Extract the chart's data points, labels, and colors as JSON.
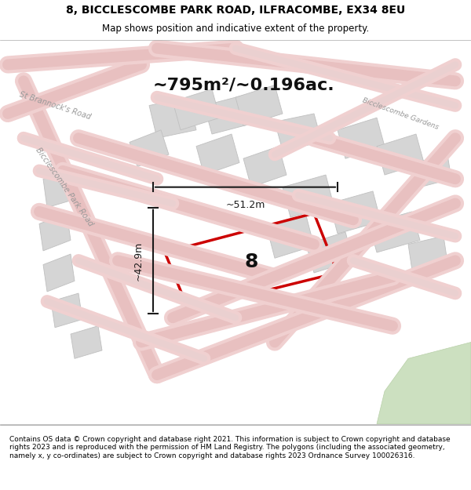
{
  "title_line1": "8, BICCLESCOMBE PARK ROAD, ILFRACOMBE, EX34 8EU",
  "title_line2": "Map shows position and indicative extent of the property.",
  "area_text": "~795m²/~0.196ac.",
  "label_8": "8",
  "dim_height": "~42.9m",
  "dim_width": "~51.2m",
  "footer_text": "Contains OS data © Crown copyright and database right 2021. This information is subject to Crown copyright and database rights 2023 and is reproduced with the permission of HM Land Registry. The polygons (including the associated geometry, namely x, y co-ordinates) are subject to Crown copyright and database rights 2023 Ordnance Survey 100026316.",
  "bg_color": "#f5f0f0",
  "map_bg": "#f5f0f0",
  "road_color": "#e8b4b4",
  "road_color_light": "#f0c8c8",
  "building_color": "#d8d8d8",
  "building_edge": "#c0c0c0",
  "red_plot": "#cc0000",
  "dim_color": "#1a1a1a",
  "road_label_color": "#888888",
  "green_area": "#c8e0c0",
  "title_bg": "#ffffff",
  "footer_bg": "#ffffff"
}
